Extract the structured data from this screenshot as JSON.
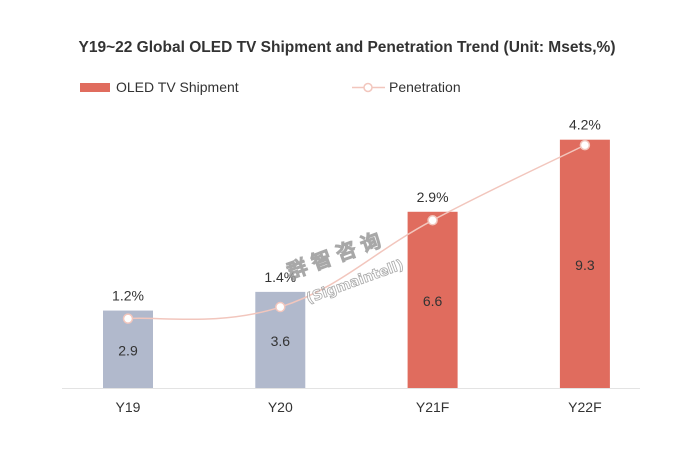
{
  "chart_data": {
    "type": "bar",
    "title": "Y19~22 Global OLED TV Shipment and Penetration Trend (Unit: Msets,%)",
    "categories": [
      "Y19",
      "Y20",
      "Y21F",
      "Y22F"
    ],
    "series": [
      {
        "name": "OLED TV Shipment",
        "type": "bar",
        "values": [
          2.9,
          3.6,
          6.6,
          9.3
        ],
        "labels": [
          "2.9",
          "3.6",
          "6.6",
          "9.3"
        ],
        "colors": [
          "#b1b9cc",
          "#b1b9cc",
          "#e06c5e",
          "#e06c5e"
        ]
      },
      {
        "name": "Penetration",
        "type": "line",
        "values": [
          1.2,
          1.4,
          2.9,
          4.2
        ],
        "labels": [
          "1.2%",
          "1.4%",
          "2.9%",
          "4.2%"
        ],
        "color": "#f2c6bd"
      }
    ],
    "legend": {
      "position": "top-left"
    },
    "watermark": {
      "line1": "群智咨询",
      "line2": "(Sigmaintell)"
    },
    "ylim_bar": [
      0,
      10
    ],
    "ylim_line": [
      0,
      4.6
    ],
    "grid": false,
    "xlabel": "",
    "ylabel": ""
  }
}
